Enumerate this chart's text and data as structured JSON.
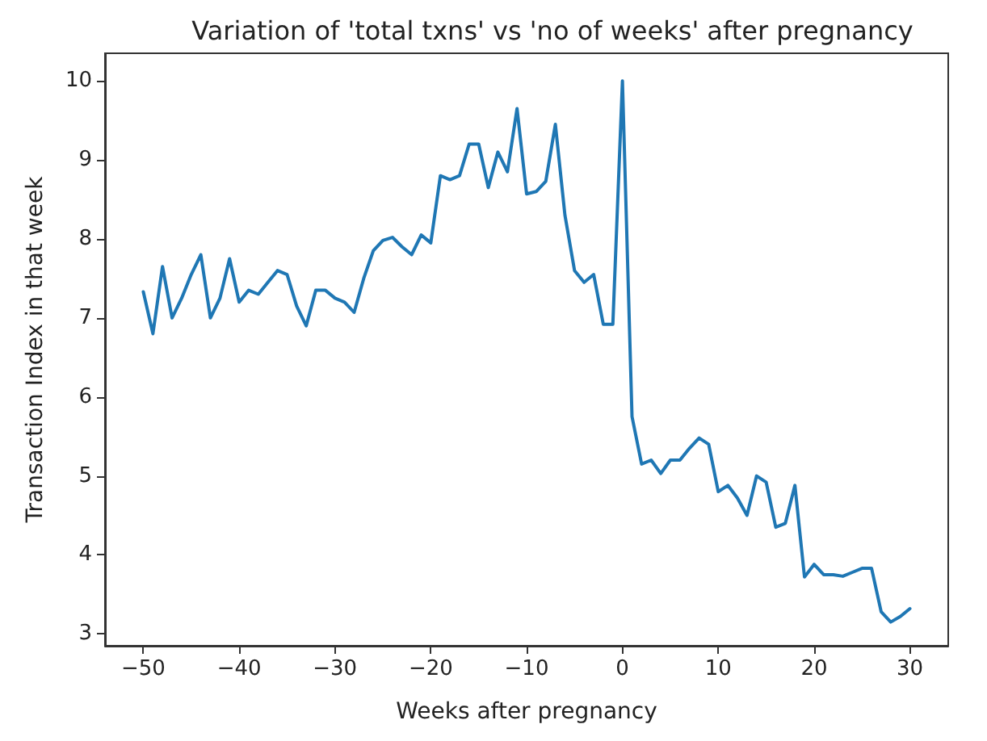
{
  "chart_data": {
    "type": "line",
    "title": "Variation of 'total txns' vs 'no of weeks' after pregnancy",
    "xlabel": "Weeks after pregnancy",
    "ylabel": "Transaction Index in that week",
    "x": [
      -50,
      -49,
      -48,
      -47,
      -46,
      -45,
      -44,
      -43,
      -42,
      -41,
      -40,
      -39,
      -38,
      -37,
      -36,
      -35,
      -34,
      -33,
      -32,
      -31,
      -30,
      -29,
      -28,
      -27,
      -26,
      -25,
      -24,
      -23,
      -22,
      -21,
      -20,
      -19,
      -18,
      -17,
      -16,
      -15,
      -14,
      -13,
      -12,
      -11,
      -10,
      -9,
      -8,
      -7,
      -6,
      -5,
      -4,
      -3,
      -2,
      -1,
      0,
      1,
      2,
      3,
      4,
      5,
      6,
      7,
      8,
      9,
      10,
      11,
      12,
      13,
      14,
      15,
      16,
      17,
      18,
      19,
      20,
      21,
      22,
      23,
      24,
      25,
      26,
      27,
      28,
      29,
      30
    ],
    "series": [
      {
        "color": "#1f77b4",
        "values": [
          7.33,
          6.8,
          7.65,
          7.0,
          7.25,
          7.55,
          7.8,
          7.0,
          7.25,
          7.75,
          7.2,
          7.35,
          7.3,
          7.45,
          7.6,
          7.55,
          7.15,
          6.9,
          7.35,
          7.35,
          7.25,
          7.2,
          7.07,
          7.5,
          7.85,
          7.98,
          8.02,
          7.9,
          7.8,
          8.05,
          7.95,
          8.8,
          8.75,
          8.8,
          9.2,
          9.2,
          8.65,
          9.1,
          8.85,
          9.65,
          8.57,
          8.6,
          8.73,
          9.45,
          8.3,
          7.6,
          7.45,
          7.55,
          6.92,
          6.92,
          10.0,
          5.75,
          5.15,
          5.2,
          5.03,
          5.2,
          5.2,
          5.35,
          5.48,
          5.4,
          4.8,
          4.88,
          4.72,
          4.5,
          5.0,
          4.92,
          4.35,
          4.4,
          4.88,
          3.72,
          3.88,
          3.75,
          3.75,
          3.73,
          3.78,
          3.83,
          3.83,
          3.28,
          3.15,
          3.22,
          3.32
        ]
      }
    ],
    "xlim": [
      -54,
      34
    ],
    "xticks": [
      -50,
      -40,
      -30,
      -20,
      -10,
      0,
      10,
      20,
      30
    ],
    "ylim": [
      2.85,
      10.35
    ],
    "yticks": [
      3,
      4,
      5,
      6,
      7,
      8,
      9,
      10
    ],
    "marker": "none",
    "line_style": "solid"
  }
}
